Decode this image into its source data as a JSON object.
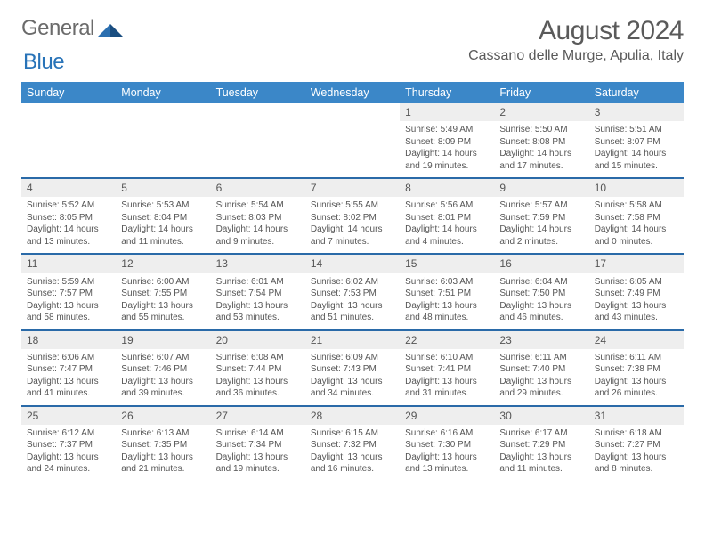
{
  "logo": {
    "text1": "General",
    "text2": "Blue"
  },
  "header": {
    "title": "August 2024",
    "location": "Cassano delle Murge, Apulia, Italy"
  },
  "colors": {
    "header_bg": "#3b87c8",
    "week_border": "#2a6aa8",
    "daynum_bg": "#eeeeee",
    "text": "#555555"
  },
  "dayNames": [
    "Sunday",
    "Monday",
    "Tuesday",
    "Wednesday",
    "Thursday",
    "Friday",
    "Saturday"
  ],
  "weeks": [
    [
      {
        "empty": true
      },
      {
        "empty": true
      },
      {
        "empty": true
      },
      {
        "empty": true
      },
      {
        "n": "1",
        "sunrise": "5:49 AM",
        "sunset": "8:09 PM",
        "daylight": "14 hours and 19 minutes."
      },
      {
        "n": "2",
        "sunrise": "5:50 AM",
        "sunset": "8:08 PM",
        "daylight": "14 hours and 17 minutes."
      },
      {
        "n": "3",
        "sunrise": "5:51 AM",
        "sunset": "8:07 PM",
        "daylight": "14 hours and 15 minutes."
      }
    ],
    [
      {
        "n": "4",
        "sunrise": "5:52 AM",
        "sunset": "8:05 PM",
        "daylight": "14 hours and 13 minutes."
      },
      {
        "n": "5",
        "sunrise": "5:53 AM",
        "sunset": "8:04 PM",
        "daylight": "14 hours and 11 minutes."
      },
      {
        "n": "6",
        "sunrise": "5:54 AM",
        "sunset": "8:03 PM",
        "daylight": "14 hours and 9 minutes."
      },
      {
        "n": "7",
        "sunrise": "5:55 AM",
        "sunset": "8:02 PM",
        "daylight": "14 hours and 7 minutes."
      },
      {
        "n": "8",
        "sunrise": "5:56 AM",
        "sunset": "8:01 PM",
        "daylight": "14 hours and 4 minutes."
      },
      {
        "n": "9",
        "sunrise": "5:57 AM",
        "sunset": "7:59 PM",
        "daylight": "14 hours and 2 minutes."
      },
      {
        "n": "10",
        "sunrise": "5:58 AM",
        "sunset": "7:58 PM",
        "daylight": "14 hours and 0 minutes."
      }
    ],
    [
      {
        "n": "11",
        "sunrise": "5:59 AM",
        "sunset": "7:57 PM",
        "daylight": "13 hours and 58 minutes."
      },
      {
        "n": "12",
        "sunrise": "6:00 AM",
        "sunset": "7:55 PM",
        "daylight": "13 hours and 55 minutes."
      },
      {
        "n": "13",
        "sunrise": "6:01 AM",
        "sunset": "7:54 PM",
        "daylight": "13 hours and 53 minutes."
      },
      {
        "n": "14",
        "sunrise": "6:02 AM",
        "sunset": "7:53 PM",
        "daylight": "13 hours and 51 minutes."
      },
      {
        "n": "15",
        "sunrise": "6:03 AM",
        "sunset": "7:51 PM",
        "daylight": "13 hours and 48 minutes."
      },
      {
        "n": "16",
        "sunrise": "6:04 AM",
        "sunset": "7:50 PM",
        "daylight": "13 hours and 46 minutes."
      },
      {
        "n": "17",
        "sunrise": "6:05 AM",
        "sunset": "7:49 PM",
        "daylight": "13 hours and 43 minutes."
      }
    ],
    [
      {
        "n": "18",
        "sunrise": "6:06 AM",
        "sunset": "7:47 PM",
        "daylight": "13 hours and 41 minutes."
      },
      {
        "n": "19",
        "sunrise": "6:07 AM",
        "sunset": "7:46 PM",
        "daylight": "13 hours and 39 minutes."
      },
      {
        "n": "20",
        "sunrise": "6:08 AM",
        "sunset": "7:44 PM",
        "daylight": "13 hours and 36 minutes."
      },
      {
        "n": "21",
        "sunrise": "6:09 AM",
        "sunset": "7:43 PM",
        "daylight": "13 hours and 34 minutes."
      },
      {
        "n": "22",
        "sunrise": "6:10 AM",
        "sunset": "7:41 PM",
        "daylight": "13 hours and 31 minutes."
      },
      {
        "n": "23",
        "sunrise": "6:11 AM",
        "sunset": "7:40 PM",
        "daylight": "13 hours and 29 minutes."
      },
      {
        "n": "24",
        "sunrise": "6:11 AM",
        "sunset": "7:38 PM",
        "daylight": "13 hours and 26 minutes."
      }
    ],
    [
      {
        "n": "25",
        "sunrise": "6:12 AM",
        "sunset": "7:37 PM",
        "daylight": "13 hours and 24 minutes."
      },
      {
        "n": "26",
        "sunrise": "6:13 AM",
        "sunset": "7:35 PM",
        "daylight": "13 hours and 21 minutes."
      },
      {
        "n": "27",
        "sunrise": "6:14 AM",
        "sunset": "7:34 PM",
        "daylight": "13 hours and 19 minutes."
      },
      {
        "n": "28",
        "sunrise": "6:15 AM",
        "sunset": "7:32 PM",
        "daylight": "13 hours and 16 minutes."
      },
      {
        "n": "29",
        "sunrise": "6:16 AM",
        "sunset": "7:30 PM",
        "daylight": "13 hours and 13 minutes."
      },
      {
        "n": "30",
        "sunrise": "6:17 AM",
        "sunset": "7:29 PM",
        "daylight": "13 hours and 11 minutes."
      },
      {
        "n": "31",
        "sunrise": "6:18 AM",
        "sunset": "7:27 PM",
        "daylight": "13 hours and 8 minutes."
      }
    ]
  ],
  "labels": {
    "sunrise": "Sunrise:",
    "sunset": "Sunset:",
    "daylight": "Daylight:"
  }
}
